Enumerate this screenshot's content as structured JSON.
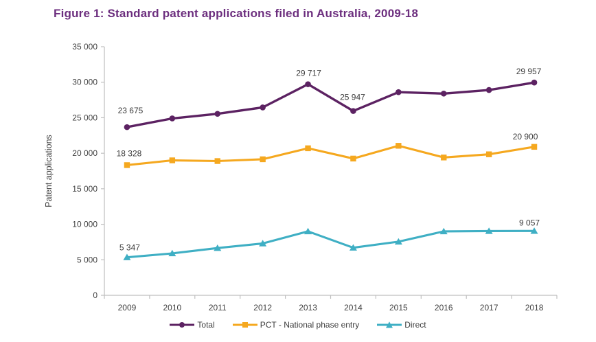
{
  "chart_data": {
    "type": "line",
    "title": "Figure 1: Standard patent applications filed in Australia, 2009-18",
    "xlabel": "",
    "ylabel": "Patent applications",
    "ylim": [
      0,
      35000
    ],
    "ytick_labels": [
      "0",
      "5 000",
      "10 000",
      "15 000",
      "20 000",
      "25 000",
      "30 000",
      "35 000"
    ],
    "grid": false,
    "legend_position": "bottom",
    "categories": [
      "2009",
      "2010",
      "2011",
      "2012",
      "2013",
      "2014",
      "2015",
      "2016",
      "2017",
      "2018"
    ],
    "series": [
      {
        "name": "Total",
        "marker": "circle",
        "color": "#5C2262",
        "values": [
          23675,
          24900,
          25550,
          26450,
          29717,
          25947,
          28600,
          28400,
          28900,
          29957
        ],
        "point_labels": [
          "23 675",
          null,
          null,
          null,
          "29 717",
          "25 947",
          null,
          null,
          null,
          "29 957"
        ]
      },
      {
        "name": "PCT - National phase entry",
        "marker": "square",
        "color": "#F5A81F",
        "values": [
          18328,
          19000,
          18900,
          19150,
          20700,
          19250,
          21050,
          19400,
          19850,
          20900
        ],
        "point_labels": [
          "18 328",
          null,
          null,
          null,
          null,
          null,
          null,
          null,
          null,
          "20 900"
        ]
      },
      {
        "name": "Direct",
        "marker": "triangle",
        "color": "#3FAFC4",
        "values": [
          5347,
          5900,
          6650,
          7300,
          9000,
          6700,
          7550,
          9000,
          9050,
          9057
        ],
        "point_labels": [
          "5 347",
          null,
          null,
          null,
          null,
          null,
          null,
          null,
          null,
          "9 057"
        ]
      }
    ],
    "colors": {
      "title": "#6C2E7E",
      "axis_line": "#BFBFBF",
      "tick_text": "#404040",
      "data_label_text": "#3C3C3C",
      "background": "#FFFFFF"
    }
  }
}
